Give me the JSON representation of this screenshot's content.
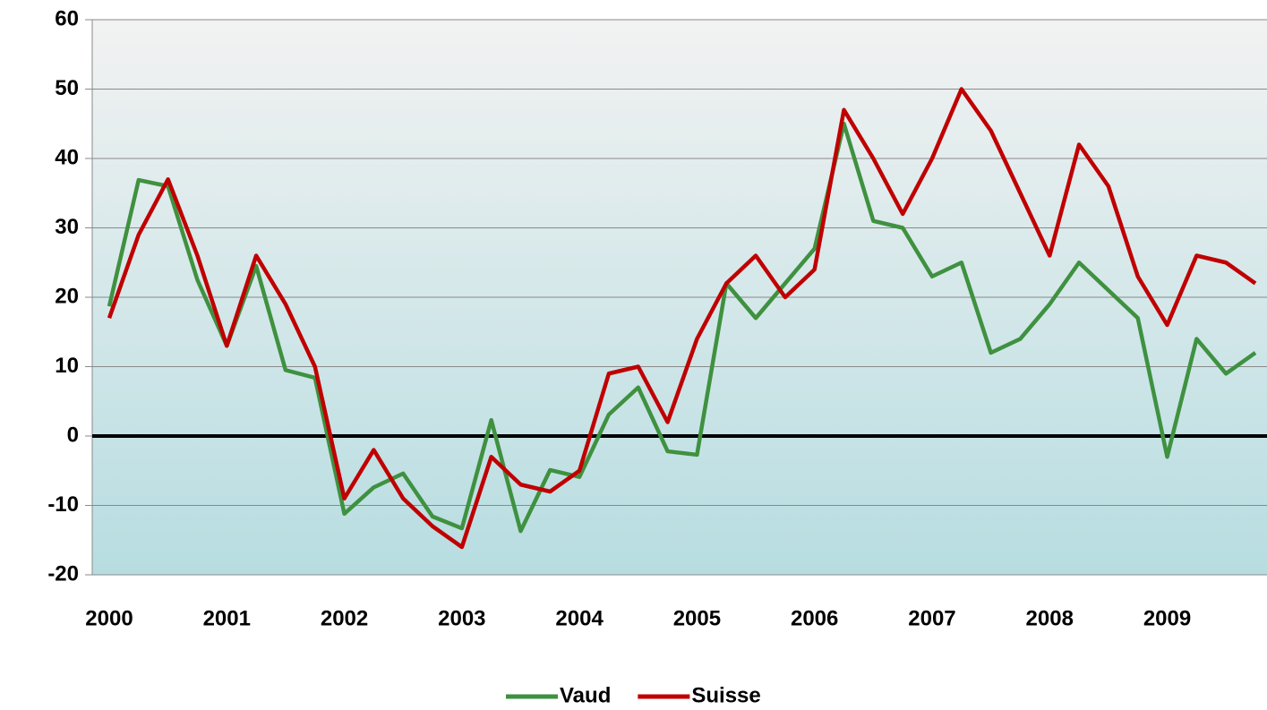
{
  "chart_data": {
    "type": "line",
    "categories": [
      "2000",
      null,
      null,
      null,
      "2001",
      null,
      null,
      null,
      "2002",
      null,
      null,
      null,
      "2003",
      null,
      null,
      null,
      "2004",
      null,
      null,
      null,
      "2005",
      null,
      null,
      null,
      "2006",
      null,
      null,
      null,
      "2007",
      null,
      null,
      null,
      "2008",
      null,
      null,
      null,
      "2009",
      null,
      null,
      null
    ],
    "series": [
      {
        "name": "Vaud",
        "color": "#3f9140",
        "values": [
          18.7,
          36.9,
          36,
          22.5,
          13,
          24.5,
          9.5,
          8.4,
          -11.2,
          -7.4,
          -5.4,
          -11.6,
          -13.3,
          2.3,
          -13.7,
          -4.9,
          -5.9,
          3.1,
          7,
          -2.2,
          -2.7,
          22,
          17,
          22,
          27,
          45,
          31,
          30,
          23,
          25,
          12,
          14,
          19,
          25,
          21,
          17,
          -3,
          14,
          9,
          12
        ]
      },
      {
        "name": "Suisse",
        "color": "#c00000",
        "values": [
          17,
          29,
          37,
          26,
          13,
          26,
          19,
          10,
          -9,
          -2,
          -9,
          -13,
          -16,
          -3,
          -7,
          -8,
          -5,
          9,
          10,
          2,
          14,
          22,
          26,
          20,
          24,
          47,
          40,
          32,
          40,
          50,
          44,
          35,
          26,
          42,
          36,
          23,
          16,
          26,
          25,
          22
        ]
      }
    ],
    "ylim": [
      -20,
      60
    ],
    "yticks": [
      -20,
      -10,
      0,
      10,
      20,
      30,
      40,
      50,
      60
    ],
    "grid": true,
    "legend": "bottom"
  }
}
